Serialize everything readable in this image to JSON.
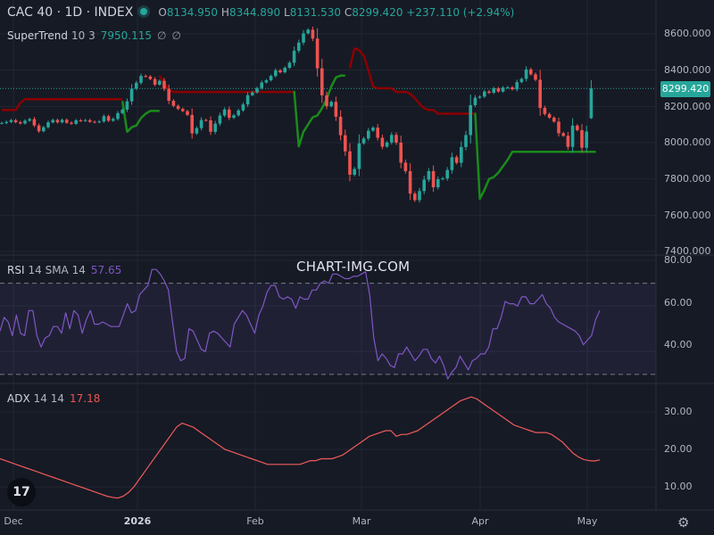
{
  "header": {
    "symbol": "CAC 40 · 1D · INDEX",
    "open_key": "O",
    "open": "8134.950",
    "high_key": "H",
    "high": "8344.890",
    "low_key": "L",
    "low": "8131.530",
    "close_key": "C",
    "close": "8299.420",
    "change": "+237.110 (+2.94%)"
  },
  "supertrend": {
    "name": "SuperTrend",
    "params": "10 3",
    "value": "7950.115",
    "extra1": "∅",
    "extra2": "∅"
  },
  "rsi": {
    "name": "RSI",
    "params": "14 SMA 14",
    "value": "57.65"
  },
  "adx": {
    "name": "ADX",
    "params": "14 14",
    "value": "17.18"
  },
  "price_tag": "8299.420",
  "watermark": "CHART-IMG.COM",
  "logo_text": "17",
  "gear_icon": "⚙",
  "colors": {
    "up": "#26a69a",
    "down": "#ef5350",
    "st_up": "#1b8a1b",
    "st_down": "#8b0000",
    "rsi": "#7e57c2",
    "adx": "#f05a5a"
  },
  "chart_data": [
    {
      "type": "candlestick",
      "title": "CAC 40 · 1D · INDEX",
      "x_tick_labels": [
        "Dec",
        "2026",
        "Feb",
        "Mar",
        "Apr",
        "May"
      ],
      "y_tick_labels": [
        "8600.000",
        "8400.000",
        "8200.000",
        "8000.000",
        "7800.000",
        "7600.000",
        "7400.000"
      ],
      "ylim": [
        7400,
        8700
      ],
      "close": [
        8108,
        8114,
        8124,
        8113,
        8106,
        8121,
        8130,
        8095,
        8063,
        8085,
        8112,
        8125,
        8112,
        8126,
        8110,
        8104,
        8123,
        8121,
        8124,
        8115,
        8113,
        8117,
        8146,
        8121,
        8131,
        8163,
        8182,
        8228,
        8298,
        8330,
        8368,
        8365,
        8351,
        8320,
        8341,
        8297,
        8231,
        8203,
        8186,
        8174,
        8153,
        8051,
        8080,
        8125,
        8123,
        8060,
        8105,
        8150,
        8183,
        8137,
        8151,
        8178,
        8211,
        8262,
        8277,
        8301,
        8332,
        8344,
        8368,
        8399,
        8388,
        8413,
        8441,
        8507,
        8552,
        8603,
        8623,
        8574,
        8410,
        8261,
        8201,
        8225,
        8143,
        8041,
        7952,
        7823,
        7855,
        7996,
        8023,
        8066,
        8083,
        8027,
        7978,
        8001,
        8043,
        8000,
        7890,
        7843,
        7719,
        7683,
        7733,
        7796,
        7843,
        7754,
        7798,
        7803,
        7849,
        7920,
        7889,
        7976,
        8042,
        8207,
        8248,
        8254,
        8282,
        8275,
        8300,
        8282,
        8304,
        8305,
        8294,
        8334,
        8352,
        8404,
        8377,
        8347,
        8192,
        8158,
        8138,
        8116,
        8052,
        8038,
        7977,
        8094,
        8069,
        7972,
        8062,
        8299
      ],
      "open": [
        8108,
        8108,
        8114,
        8124,
        8113,
        8106,
        8121,
        8130,
        8095,
        8063,
        8085,
        8112,
        8125,
        8112,
        8126,
        8110,
        8104,
        8123,
        8121,
        8124,
        8115,
        8113,
        8117,
        8146,
        8121,
        8131,
        8163,
        8182,
        8228,
        8298,
        8330,
        8368,
        8365,
        8351,
        8320,
        8341,
        8297,
        8231,
        8203,
        8186,
        8174,
        8153,
        8051,
        8080,
        8125,
        8123,
        8060,
        8105,
        8150,
        8183,
        8137,
        8151,
        8178,
        8211,
        8262,
        8277,
        8301,
        8332,
        8344,
        8368,
        8399,
        8388,
        8413,
        8441,
        8507,
        8552,
        8603,
        8623,
        8574,
        8410,
        8261,
        8201,
        8225,
        8143,
        8041,
        7952,
        7823,
        7855,
        7996,
        8023,
        8066,
        8083,
        8027,
        7978,
        8001,
        8043,
        8000,
        7890,
        7843,
        7719,
        7683,
        7733,
        7796,
        7843,
        7754,
        7798,
        7803,
        7849,
        7920,
        7889,
        7976,
        8042,
        8207,
        8248,
        8254,
        8282,
        8275,
        8300,
        8282,
        8304,
        8305,
        8294,
        8334,
        8352,
        8404,
        8377,
        8347,
        8192,
        8158,
        8138,
        8116,
        8052,
        8038,
        7977,
        8094,
        8069,
        7972,
        8135
      ],
      "supertrend_segments": [
        {
          "trend": "down",
          "start": 0,
          "values": [
            8180,
            8180,
            8180,
            8180,
            8220,
            8240,
            8240,
            8240,
            8240,
            8240,
            8240,
            8240,
            8240,
            8240,
            8240,
            8240,
            8240,
            8240,
            8240,
            8240,
            8240,
            8240,
            8240,
            8240,
            8240,
            8240,
            8240
          ]
        },
        {
          "trend": "up",
          "start": 26,
          "values": [
            8230,
            8060,
            8085,
            8095,
            8135,
            8160,
            8175,
            8175,
            8175
          ]
        },
        {
          "trend": "down",
          "start": 34,
          "values": [
            8370,
            8330,
            8290,
            8280,
            8280,
            8280,
            8280,
            8280,
            8280,
            8280,
            8280,
            8280,
            8280,
            8280,
            8280,
            8280,
            8280,
            8280,
            8280,
            8280,
            8280,
            8280,
            8280,
            8280,
            8280,
            8280,
            8280,
            8280,
            8280,
            8280
          ]
        },
        {
          "trend": "up",
          "start": 63,
          "values": [
            8285,
            7980,
            8060,
            8100,
            8140,
            8150,
            8190,
            8240,
            8310,
            8360,
            8370,
            8370
          ]
        },
        {
          "trend": "down",
          "start": 75,
          "values": [
            8410,
            8520,
            8510,
            8480,
            8400,
            8310,
            8300,
            8300,
            8300,
            8300,
            8280,
            8280,
            8280,
            8270,
            8245,
            8215,
            8190,
            8180,
            8180,
            8160,
            8160,
            8160,
            8160,
            8160,
            8160,
            8160,
            8160,
            8160
          ]
        },
        {
          "trend": "up",
          "start": 102,
          "values": [
            8165,
            7690,
            7740,
            7800,
            7810,
            7835,
            7870,
            7905,
            7950,
            7950,
            7950,
            7950,
            7950,
            7950,
            7950,
            7950,
            7950,
            7950,
            7950,
            7950,
            7950,
            7950,
            7950,
            7950,
            7950,
            7950,
            7950
          ]
        }
      ]
    },
    {
      "type": "line",
      "title": "RSI 14 SMA 14",
      "y_tick_labels": [
        "80.00",
        "60.00",
        "40.00"
      ],
      "ylim": [
        28,
        80
      ],
      "bands": [
        70,
        30
      ],
      "values": [
        49,
        55,
        53,
        47,
        56,
        48,
        47,
        58,
        58,
        47,
        42,
        46,
        47,
        51,
        51,
        48,
        57,
        50,
        58,
        56,
        48,
        54,
        58,
        52,
        52,
        53,
        52,
        51,
        51,
        51,
        56,
        61,
        57,
        58,
        65,
        67,
        69,
        76,
        76,
        74,
        71,
        67,
        53,
        40,
        36,
        37,
        50,
        49,
        45,
        41,
        40,
        48,
        49,
        48,
        46,
        44,
        42,
        52,
        55,
        58,
        56,
        52,
        48,
        56,
        60,
        66,
        69,
        69,
        64,
        63,
        64,
        63,
        59,
        64,
        63,
        63,
        67,
        67,
        70,
        71,
        70,
        74,
        74,
        73,
        72,
        72,
        73,
        73,
        74,
        75,
        65,
        46,
        36,
        39,
        37,
        34,
        33,
        39,
        39,
        42,
        39,
        36,
        38,
        41,
        41,
        37,
        35,
        38,
        34,
        28,
        31,
        33,
        38,
        35,
        32,
        36,
        37,
        39,
        39,
        42,
        50,
        50,
        55,
        62,
        61,
        61,
        60,
        64,
        64,
        61,
        61,
        63,
        65,
        61,
        59,
        55,
        53,
        52,
        51,
        50,
        49,
        47,
        43,
        45,
        47,
        54,
        58
      ]
    },
    {
      "type": "line",
      "title": "ADX 14 14",
      "y_tick_labels": [
        "30.00",
        "20.00",
        "10.00"
      ],
      "ylim": [
        6,
        36
      ],
      "values": [
        17.5,
        17.0,
        16.5,
        16.0,
        15.5,
        15.0,
        14.5,
        14.0,
        13.5,
        13.0,
        12.5,
        12.0,
        11.5,
        11.0,
        10.5,
        10.0,
        9.5,
        9.0,
        8.5,
        8.0,
        7.5,
        7.2,
        7.0,
        7.5,
        8.5,
        10.0,
        12.0,
        14.0,
        16.0,
        18.0,
        20.0,
        22.0,
        24.0,
        26.0,
        27.0,
        26.5,
        26.0,
        25.0,
        24.0,
        23.0,
        22.0,
        21.0,
        20.0,
        19.5,
        19.0,
        18.5,
        18.0,
        17.5,
        17.0,
        16.5,
        16.0,
        16.0,
        16.0,
        16.0,
        16.0,
        16.0,
        16.0,
        16.5,
        17.0,
        17.0,
        17.5,
        17.5,
        17.5,
        18.0,
        18.5,
        19.5,
        20.5,
        21.5,
        22.5,
        23.5,
        24.0,
        24.5,
        25.0,
        25.0,
        23.5,
        24.0,
        24.0,
        24.5,
        25.0,
        26.0,
        27.0,
        28.0,
        29.0,
        30.0,
        31.0,
        32.0,
        33.0,
        33.5,
        34.0,
        33.5,
        32.5,
        31.5,
        30.5,
        29.5,
        28.5,
        27.5,
        26.5,
        26.0,
        25.5,
        25.0,
        24.5,
        24.5,
        24.5,
        24.0,
        23.0,
        22.0,
        20.5,
        19.0,
        18.0,
        17.3,
        17.0,
        16.9,
        17.18
      ]
    }
  ]
}
